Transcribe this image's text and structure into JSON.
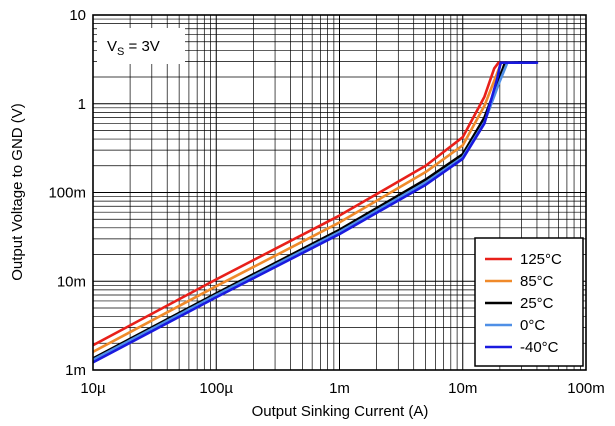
{
  "chart_data": {
    "type": "line",
    "xlabel": "Output Sinking Current (A)",
    "ylabel": "Output Voltage to GND (V)",
    "x_scale": "log",
    "y_scale": "log",
    "xlim": [
      1e-05,
      0.1
    ],
    "ylim": [
      0.001,
      10
    ],
    "grid": true,
    "x_ticks": [
      {
        "value": 1e-05,
        "label": "10µ"
      },
      {
        "value": 0.0001,
        "label": "100µ"
      },
      {
        "value": 0.001,
        "label": "1m"
      },
      {
        "value": 0.01,
        "label": "10m"
      },
      {
        "value": 0.1,
        "label": "100m"
      }
    ],
    "y_ticks": [
      {
        "value": 0.001,
        "label": "1m"
      },
      {
        "value": 0.01,
        "label": "10m"
      },
      {
        "value": 0.1,
        "label": "100m"
      },
      {
        "value": 1,
        "label": "1"
      },
      {
        "value": 10,
        "label": "10"
      }
    ],
    "annotation": {
      "main": "V",
      "sub": "S",
      "rest": " = 3V"
    },
    "legend_position": "bottom-right",
    "series": [
      {
        "name": "125°C",
        "color": "#e8201a",
        "x": [
          1e-05,
          0.0001,
          0.001,
          0.005,
          0.01,
          0.015,
          0.018,
          0.0195,
          0.025
        ],
        "y": [
          0.0019,
          0.0105,
          0.055,
          0.2,
          0.42,
          1.2,
          2.5,
          2.9,
          2.9
        ]
      },
      {
        "name": "85°C",
        "color": "#f08a2a",
        "x": [
          1e-05,
          0.0001,
          0.001,
          0.005,
          0.01,
          0.015,
          0.019,
          0.0205,
          0.026
        ],
        "y": [
          0.0016,
          0.0088,
          0.046,
          0.17,
          0.34,
          0.95,
          2.2,
          2.9,
          2.9
        ]
      },
      {
        "name": "25°C",
        "color": "#000000",
        "x": [
          1e-05,
          0.0001,
          0.001,
          0.005,
          0.01,
          0.015,
          0.02,
          0.022,
          0.027
        ],
        "y": [
          0.00135,
          0.0073,
          0.038,
          0.14,
          0.27,
          0.7,
          2.0,
          2.9,
          2.9
        ]
      },
      {
        "name": "0°C",
        "color": "#4f8fe6",
        "x": [
          1e-05,
          0.0001,
          0.001,
          0.005,
          0.01,
          0.015,
          0.02,
          0.023,
          0.028
        ],
        "y": [
          0.0013,
          0.007,
          0.036,
          0.13,
          0.25,
          0.62,
          1.8,
          2.9,
          2.9
        ]
      },
      {
        "name": "-40°C",
        "color": "#1a1adf",
        "x": [
          1e-05,
          0.0001,
          0.001,
          0.005,
          0.01,
          0.015,
          0.019,
          0.0203,
          0.04
        ],
        "y": [
          0.00122,
          0.0066,
          0.034,
          0.122,
          0.24,
          0.6,
          1.9,
          2.9,
          2.9
        ]
      }
    ]
  }
}
